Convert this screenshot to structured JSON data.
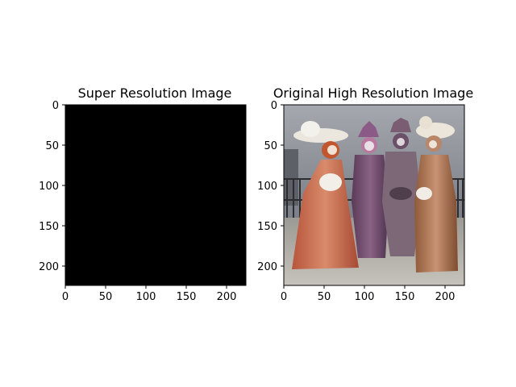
{
  "chart_data": [
    {
      "type": "image",
      "title": "Super Resolution Image",
      "xlim": [
        0,
        224
      ],
      "ylim": [
        224,
        0
      ],
      "x_ticks": [
        0,
        50,
        100,
        150,
        200
      ],
      "y_ticks": [
        0,
        50,
        100,
        150,
        200
      ],
      "content": "solid-black",
      "fill_color": "#000000"
    },
    {
      "type": "image",
      "title": "Original High Resolution Image",
      "xlim": [
        0,
        224
      ],
      "ylim": [
        224,
        0
      ],
      "x_ticks": [
        0,
        50,
        100,
        150,
        200
      ],
      "y_ticks": [
        0,
        50,
        100,
        150,
        200
      ],
      "content": "photo-venetian-carnival-costumes",
      "fill_color": "#8a8d95"
    }
  ]
}
